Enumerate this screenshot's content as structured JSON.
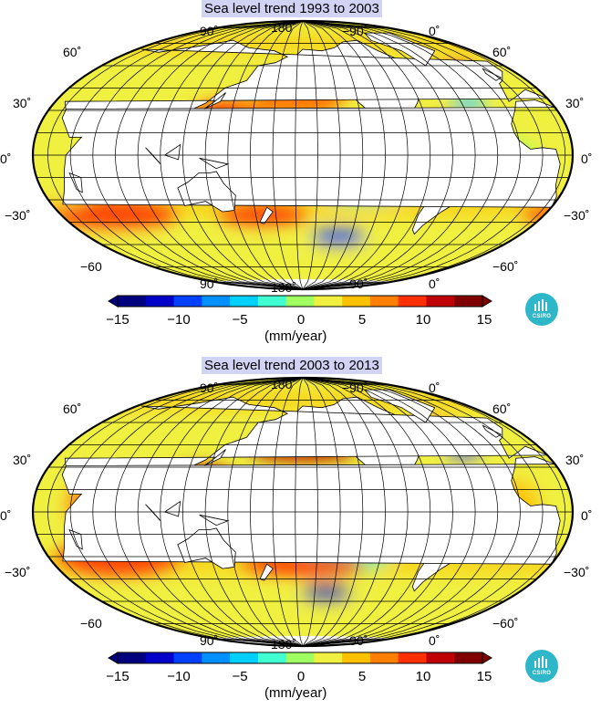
{
  "panels": [
    {
      "title": "Sea level trend 1993 to 2003",
      "lon_labels_top": [
        "90˚",
        "180˚",
        "−90˚",
        "0˚"
      ],
      "lon_labels_bottom": [
        "90˚",
        "180˚",
        "−90˚",
        "0˚"
      ],
      "lat_labels_left": [
        "60˚",
        "30˚",
        "0˚",
        "−30˚",
        "−60"
      ],
      "lat_labels_right": [
        "60˚",
        "30˚",
        "0˚",
        "−30˚",
        "−60˚"
      ],
      "pattern": "early"
    },
    {
      "title": "Sea level trend 2003 to 2013",
      "lon_labels_top": [
        "90˚",
        "180˚",
        "−90˚",
        "0˚"
      ],
      "lon_labels_bottom": [
        "90˚",
        "180˚",
        "−90˚",
        "0˚"
      ],
      "lat_labels_left": [
        "60˚",
        "30˚",
        "0˚",
        "−30˚",
        "−60"
      ],
      "lat_labels_right": [
        "60˚",
        "30˚",
        "0˚",
        "−30˚",
        "−60˚"
      ],
      "pattern": "late"
    }
  ],
  "colorbar": {
    "ticks": [
      "−15",
      "−10",
      "−5",
      "0",
      "5",
      "10",
      "15"
    ],
    "unit": "(mm/year)",
    "colors": [
      "#00007f",
      "#0000c8",
      "#0040ff",
      "#0090ff",
      "#00d0ff",
      "#40ffd0",
      "#a0ff60",
      "#f0f040",
      "#ffc000",
      "#ff8000",
      "#ff3000",
      "#c00000",
      "#800000"
    ]
  },
  "logo": {
    "text": "CSIRO",
    "color": "#2eb6c9"
  },
  "colors": {
    "land": "#ffffff",
    "title_background": "#d2d2f5",
    "grid": "#000000"
  }
}
